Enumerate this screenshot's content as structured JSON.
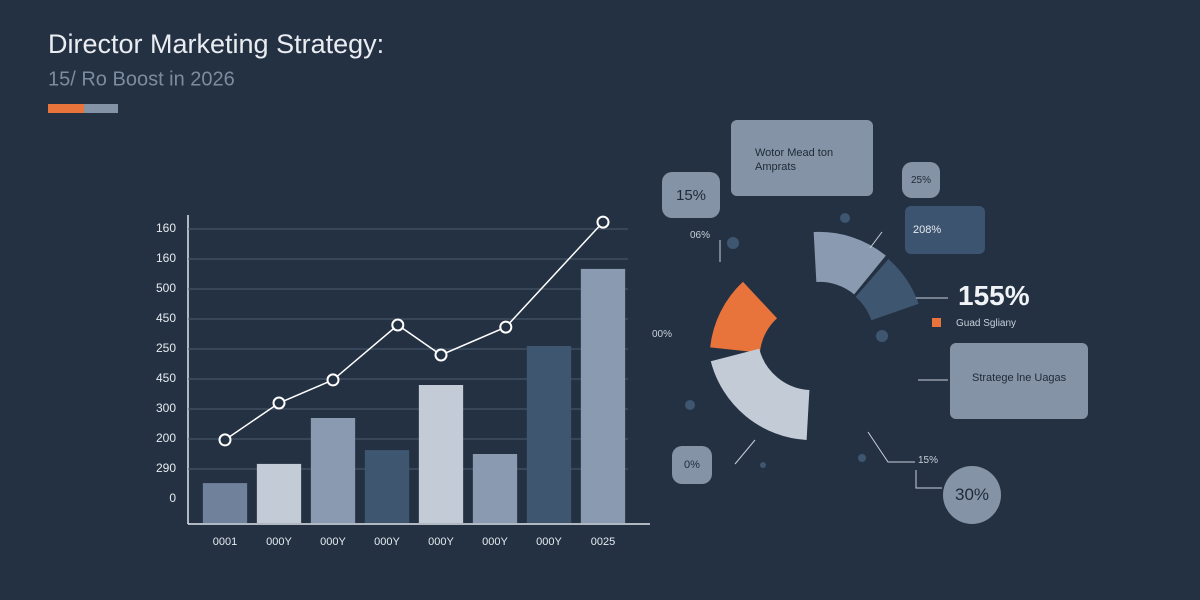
{
  "chart_data": {
    "type": "bar",
    "title": "Director Marketing Strategy:",
    "subtitle": "15/ Ro Boost in 2026",
    "categories": [
      "0001",
      "000Y",
      "000Y",
      "000Y",
      "000Y",
      "000Y",
      "000Y",
      "0025"
    ],
    "values": [
      0.53,
      1.17,
      2.7,
      1.63,
      3.8,
      1.5,
      5.1,
      7.67
    ],
    "colors": [
      "#6f819b",
      "#c3ccd6",
      "#8a9ab0",
      "#3e5670",
      "#c3ccd6",
      "#8a9ab0",
      "#3e5670",
      "#8a9ab0"
    ],
    "line": {
      "x": [
        0,
        1,
        2,
        3.2,
        4,
        5.2,
        7
      ],
      "values": [
        1.97,
        3.2,
        3.97,
        5.8,
        4.8,
        5.73,
        9.23
      ],
      "color": "#ffffff"
    },
    "ylim": [
      -0.8,
      9.5
    ],
    "yticks": [
      {
        "value": 0,
        "label": "0"
      },
      {
        "value": 1,
        "label": "290"
      },
      {
        "value": 2,
        "label": "200"
      },
      {
        "value": 3,
        "label": "300"
      },
      {
        "value": 4,
        "label": "450"
      },
      {
        "value": 5,
        "label": "250"
      },
      {
        "value": 6,
        "label": "450"
      },
      {
        "value": 7,
        "label": "500"
      },
      {
        "value": 8,
        "label": "160"
      },
      {
        "value": 9,
        "label": "160"
      }
    ],
    "grid": true
  },
  "callouts": [
    "Wotor Mead ton Amprats",
    "15%",
    "25%",
    "208%",
    "06%",
    "00%",
    "155%",
    "Guad Sgliany",
    "Stratege lne Uagas",
    "0%",
    "15%",
    "30%"
  ]
}
